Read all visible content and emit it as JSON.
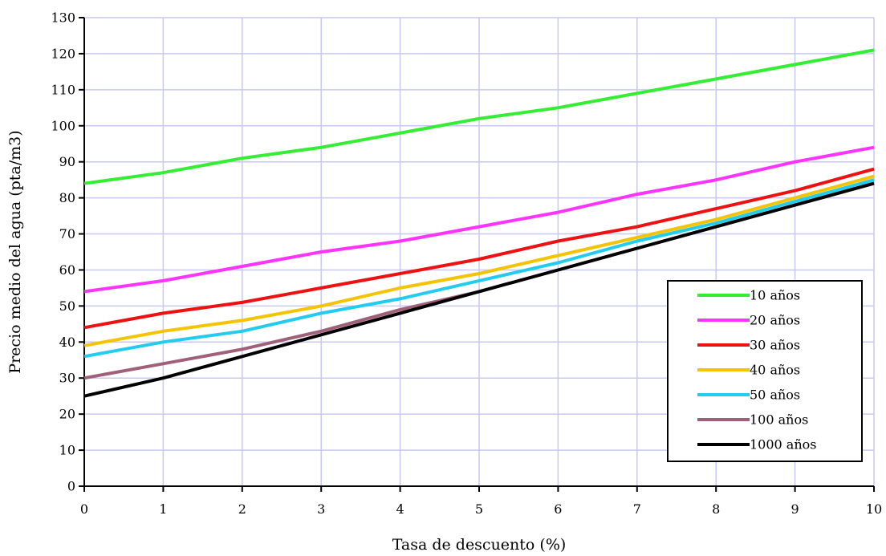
{
  "chart_data": {
    "type": "line",
    "title": "",
    "xlabel": "Tasa de descuento (%)",
    "ylabel": "Precio medio del agua (pta/m3)",
    "xlim": [
      0,
      10
    ],
    "ylim": [
      0,
      130
    ],
    "xticks": [
      0,
      1,
      2,
      3,
      4,
      5,
      6,
      7,
      8,
      9,
      10
    ],
    "yticks": [
      0,
      10,
      20,
      30,
      40,
      50,
      60,
      70,
      80,
      90,
      100,
      110,
      120,
      130
    ],
    "grid": true,
    "grid_color": "#c8c8f0",
    "legend_position": "bottom-right",
    "x": [
      0,
      1,
      2,
      3,
      4,
      5,
      6,
      7,
      8,
      9,
      10
    ],
    "series": [
      {
        "name": "10 años",
        "color": "#33ee33",
        "values": [
          84,
          87,
          91,
          94,
          98,
          102,
          105,
          109,
          113,
          117,
          121
        ]
      },
      {
        "name": "20 años",
        "color": "#ff33ff",
        "values": [
          54,
          57,
          61,
          65,
          68,
          72,
          76,
          81,
          85,
          90,
          94
        ]
      },
      {
        "name": "30 años",
        "color": "#ee1111",
        "values": [
          44,
          48,
          51,
          55,
          59,
          63,
          68,
          72,
          77,
          82,
          88
        ]
      },
      {
        "name": "40 años",
        "color": "#f5c400",
        "values": [
          39,
          43,
          46,
          50,
          55,
          59,
          64,
          69,
          74,
          80,
          86
        ]
      },
      {
        "name": "50 años",
        "color": "#22ccee",
        "values": [
          36,
          40,
          43,
          48,
          52,
          57,
          62,
          68,
          73,
          79,
          85
        ]
      },
      {
        "name": "100 años",
        "color": "#a0607a",
        "values": [
          30,
          34,
          38,
          43,
          49,
          54,
          60,
          66,
          72,
          78,
          84
        ]
      },
      {
        "name": "1000 años",
        "color": "#000000",
        "values": [
          25,
          30,
          36,
          42,
          48,
          54,
          60,
          66,
          72,
          78,
          84
        ]
      }
    ]
  }
}
